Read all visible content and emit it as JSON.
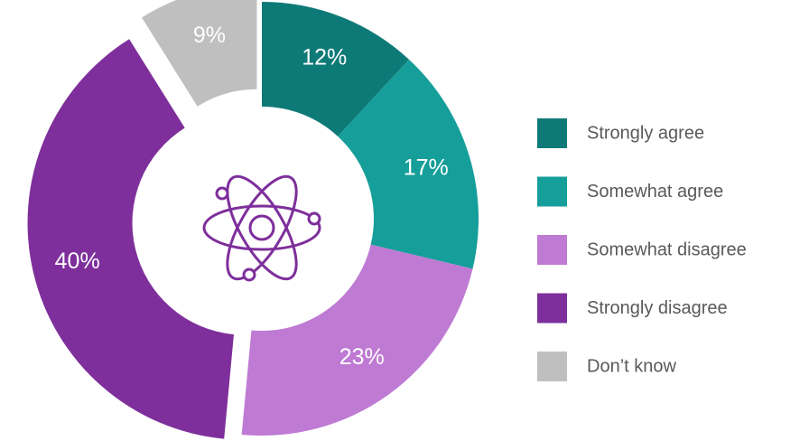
{
  "chart_data": {
    "type": "donut",
    "categories": [
      "Strongly agree",
      "Somewhat agree",
      "Somewhat disagree",
      "Strongly disagree",
      "Don’t know"
    ],
    "values": [
      12,
      17,
      23,
      40,
      9
    ],
    "value_labels": [
      "12%",
      "17%",
      "23%",
      "40%",
      "9%"
    ],
    "colors": [
      "#0e7a78",
      "#159e9a",
      "#bf7ad4",
      "#7e2f9b",
      "#bfbfbf"
    ],
    "exploded": [
      false,
      false,
      false,
      true,
      true
    ],
    "legend": "right"
  }
}
